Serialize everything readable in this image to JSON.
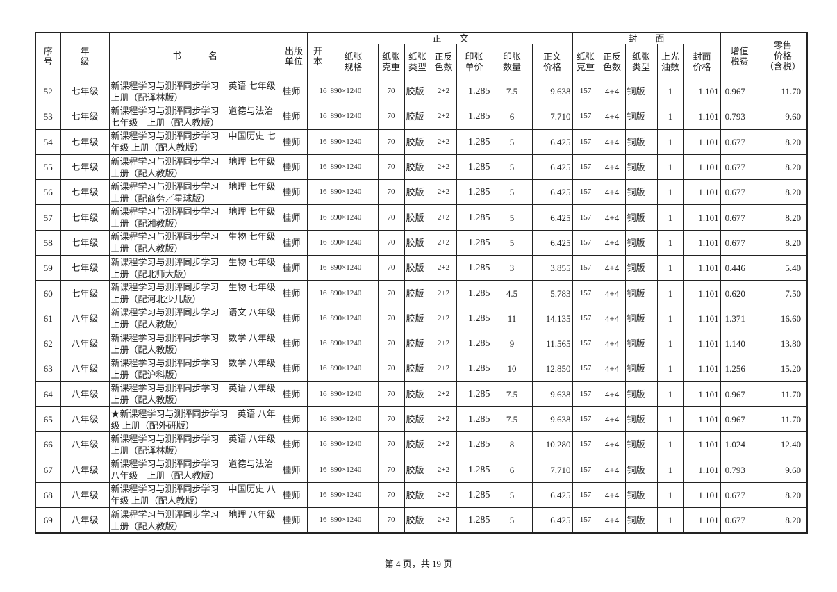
{
  "header": {
    "seq": "序\n号",
    "grade": "年\n级",
    "title": "书　　　名",
    "publisher": "出版\n单位",
    "format": "开\n本",
    "body_group": "正　　文",
    "body_cols": [
      "纸张\n规格",
      "纸张\n克重",
      "纸张\n类型",
      "正反\n色数",
      "印张\n单价",
      "印张\n数量",
      "正文\n价格"
    ],
    "cover_group": "封　　面",
    "cover_cols": [
      "纸张\n克重",
      "正反\n色数",
      "纸张\n类型",
      "上光\n油数",
      "封面\n价格"
    ],
    "vat": "增值\n税费",
    "retail": "零售\n价格\n（含税）"
  },
  "rows": [
    [
      "52",
      "七年级",
      "新课程学习与测评同步学习　英语 七年级 上册（配译林版）",
      "桂师",
      "16",
      "890×1240",
      "70",
      "胶版",
      "2+2",
      "1.285",
      "7.5",
      "9.638",
      "157",
      "4+4",
      "铜版",
      "1",
      "1.101",
      "0.967",
      "11.70"
    ],
    [
      "53",
      "七年级",
      "新课程学习与测评同步学习　道德与法治　七年级　上册（配人教版）",
      "桂师",
      "16",
      "890×1240",
      "70",
      "胶版",
      "2+2",
      "1.285",
      "6",
      "7.710",
      "157",
      "4+4",
      "铜版",
      "1",
      "1.101",
      "0.793",
      "9.60"
    ],
    [
      "54",
      "七年级",
      "新课程学习与测评同步学习　中国历史 七年级 上册（配人教版）",
      "桂师",
      "16",
      "890×1240",
      "70",
      "胶版",
      "2+2",
      "1.285",
      "5",
      "6.425",
      "157",
      "4+4",
      "铜版",
      "1",
      "1.101",
      "0.677",
      "8.20"
    ],
    [
      "55",
      "七年级",
      "新课程学习与测评同步学习　地理 七年级 上册（配人教版）",
      "桂师",
      "16",
      "890×1240",
      "70",
      "胶版",
      "2+2",
      "1.285",
      "5",
      "6.425",
      "157",
      "4+4",
      "铜版",
      "1",
      "1.101",
      "0.677",
      "8.20"
    ],
    [
      "56",
      "七年级",
      "新课程学习与测评同步学习　地理 七年级 上册（配商务／星球版）",
      "桂师",
      "16",
      "890×1240",
      "70",
      "胶版",
      "2+2",
      "1.285",
      "5",
      "6.425",
      "157",
      "4+4",
      "铜版",
      "1",
      "1.101",
      "0.677",
      "8.20"
    ],
    [
      "57",
      "七年级",
      "新课程学习与测评同步学习　地理 七年级 上册（配湘教版）",
      "桂师",
      "16",
      "890×1240",
      "70",
      "胶版",
      "2+2",
      "1.285",
      "5",
      "6.425",
      "157",
      "4+4",
      "铜版",
      "1",
      "1.101",
      "0.677",
      "8.20"
    ],
    [
      "58",
      "七年级",
      "新课程学习与测评同步学习　生物 七年级 上册（配人教版）",
      "桂师",
      "16",
      "890×1240",
      "70",
      "胶版",
      "2+2",
      "1.285",
      "5",
      "6.425",
      "157",
      "4+4",
      "铜版",
      "1",
      "1.101",
      "0.677",
      "8.20"
    ],
    [
      "59",
      "七年级",
      "新课程学习与测评同步学习　生物 七年级 上册（配北师大版）",
      "桂师",
      "16",
      "890×1240",
      "70",
      "胶版",
      "2+2",
      "1.285",
      "3",
      "3.855",
      "157",
      "4+4",
      "铜版",
      "1",
      "1.101",
      "0.446",
      "5.40"
    ],
    [
      "60",
      "七年级",
      "新课程学习与测评同步学习　生物 七年级 上册（配河北少儿版）",
      "桂师",
      "16",
      "890×1240",
      "70",
      "胶版",
      "2+2",
      "1.285",
      "4.5",
      "5.783",
      "157",
      "4+4",
      "铜版",
      "1",
      "1.101",
      "0.620",
      "7.50"
    ],
    [
      "61",
      "八年级",
      "新课程学习与测评同步学习　语文 八年级 上册（配人教版）",
      "桂师",
      "16",
      "890×1240",
      "70",
      "胶版",
      "2+2",
      "1.285",
      "11",
      "14.135",
      "157",
      "4+4",
      "铜版",
      "1",
      "1.101",
      "1.371",
      "16.60"
    ],
    [
      "62",
      "八年级",
      "新课程学习与测评同步学习　数学 八年级 上册（配人教版）",
      "桂师",
      "16",
      "890×1240",
      "70",
      "胶版",
      "2+2",
      "1.285",
      "9",
      "11.565",
      "157",
      "4+4",
      "铜版",
      "1",
      "1.101",
      "1.140",
      "13.80"
    ],
    [
      "63",
      "八年级",
      "新课程学习与测评同步学习　数学 八年级 上册（配沪科版）",
      "桂师",
      "16",
      "890×1240",
      "70",
      "胶版",
      "2+2",
      "1.285",
      "10",
      "12.850",
      "157",
      "4+4",
      "铜版",
      "1",
      "1.101",
      "1.256",
      "15.20"
    ],
    [
      "64",
      "八年级",
      "新课程学习与测评同步学习　英语 八年级 上册（配人教版）",
      "桂师",
      "16",
      "890×1240",
      "70",
      "胶版",
      "2+2",
      "1.285",
      "7.5",
      "9.638",
      "157",
      "4+4",
      "铜版",
      "1",
      "1.101",
      "0.967",
      "11.70"
    ],
    [
      "65",
      "八年级",
      "★新课程学习与测评同步学习　英语 八年级 上册（配外研版）",
      "桂师",
      "16",
      "890×1240",
      "70",
      "胶版",
      "2+2",
      "1.285",
      "7.5",
      "9.638",
      "157",
      "4+4",
      "铜版",
      "1",
      "1.101",
      "0.967",
      "11.70"
    ],
    [
      "66",
      "八年级",
      "新课程学习与测评同步学习　英语 八年级 上册（配译林版）",
      "桂师",
      "16",
      "890×1240",
      "70",
      "胶版",
      "2+2",
      "1.285",
      "8",
      "10.280",
      "157",
      "4+4",
      "铜版",
      "1",
      "1.101",
      "1.024",
      "12.40"
    ],
    [
      "67",
      "八年级",
      "新课程学习与测评同步学习　道德与法治　八年级　上册（配人教版）",
      "桂师",
      "16",
      "890×1240",
      "70",
      "胶版",
      "2+2",
      "1.285",
      "6",
      "7.710",
      "157",
      "4+4",
      "铜版",
      "1",
      "1.101",
      "0.793",
      "9.60"
    ],
    [
      "68",
      "八年级",
      "新课程学习与测评同步学习　中国历史 八年级 上册（配人教版）",
      "桂师",
      "16",
      "890×1240",
      "70",
      "胶版",
      "2+2",
      "1.285",
      "5",
      "6.425",
      "157",
      "4+4",
      "铜版",
      "1",
      "1.101",
      "0.677",
      "8.20"
    ],
    [
      "69",
      "八年级",
      "新课程学习与测评同步学习　地理 八年级 上册（配人教版）",
      "桂师",
      "16",
      "890×1240",
      "70",
      "胶版",
      "2+2",
      "1.285",
      "5",
      "6.425",
      "157",
      "4+4",
      "铜版",
      "1",
      "1.101",
      "0.677",
      "8.20"
    ]
  ],
  "footer": "第 4 页，共 19 页"
}
